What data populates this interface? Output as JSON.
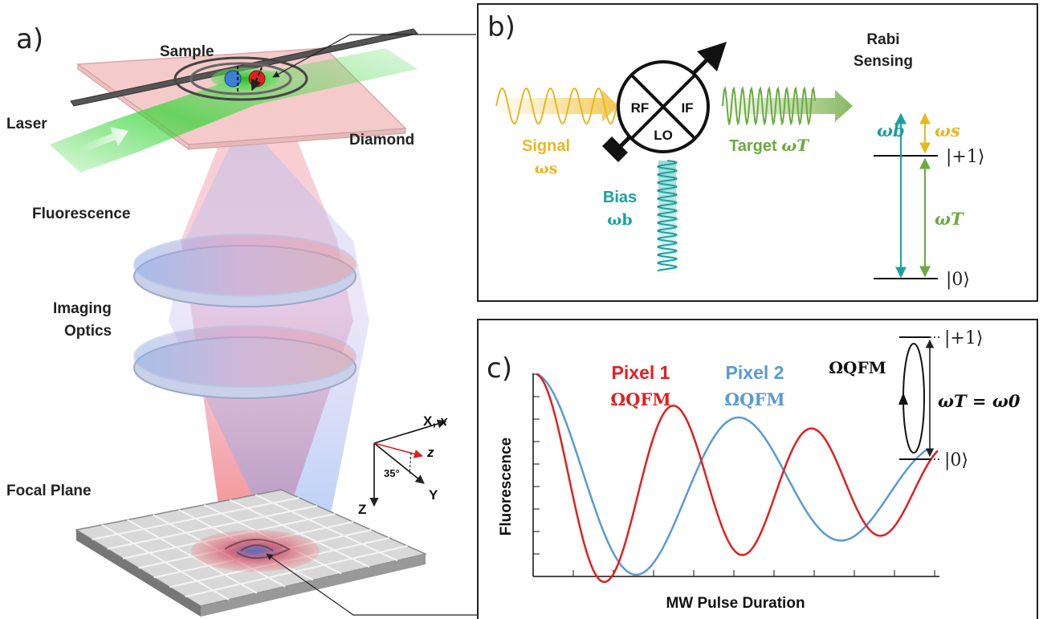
{
  "panel_a": {
    "letter": "a)",
    "sample_label": "Sample",
    "laser_label": "Laser",
    "diamond_label": "Diamond",
    "fluorescence_label": "Fluorescence",
    "imaging_optics_line1": "Imaging",
    "imaging_optics_line2": "Optics",
    "focal_plane_label": "Focal Plane",
    "axes": {
      "x_label": "X, ",
      "x_italic": "x",
      "z_label": "z",
      "angle_label": "35°",
      "Z_label": "Z",
      "Y_label": "Y"
    },
    "colors": {
      "laser": "#3fd63f",
      "red_beam": "#f05050",
      "blue_beam": "#5a8fe0",
      "diamond": "#f5c8c8"
    }
  },
  "panel_b": {
    "letter": "b)",
    "title_line1": "Rabi",
    "title_line2": "Sensing",
    "mixer_rf": "RF",
    "mixer_if": "IF",
    "mixer_lo": "LO",
    "signal_label": "Signal",
    "signal_freq": "ωs",
    "bias_label": "Bias",
    "bias_freq": "ωb",
    "target_label": "Target ",
    "target_freq": "ωT",
    "level_plus1": "|+1⟩",
    "level_0": "|0⟩",
    "omega_b": "ωb",
    "omega_s": "ωs",
    "omega_T": "ωT",
    "colors": {
      "signal": "#e8b820",
      "bias": "#1aa0a0",
      "target": "#6aaa40"
    }
  },
  "panel_c": {
    "letter": "c)",
    "pixel1_label": "Pixel 1",
    "pixel1_freq": "ΩQFM",
    "pixel2_label": "Pixel 2",
    "pixel2_freq": "ΩQFM",
    "inset_omega": "ΩQFM",
    "inset_plus1": "|+1⟩",
    "inset_0": "|0⟩",
    "inset_resonance": "ωT = ω0",
    "xlabel": "MW Pulse Duration",
    "ylabel": "Fluorescence",
    "colors": {
      "pixel1": "#e02020",
      "pixel2": "#5a9ad0"
    }
  }
}
